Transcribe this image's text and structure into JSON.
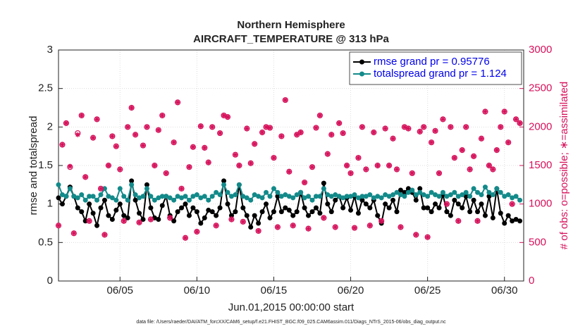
{
  "chart_data": {
    "type": "line",
    "title": "Northern Hemisphere",
    "subtitle": "AIRCRAFT_TEMPERATURE @ 313 hPa",
    "x_label": "Jun.01,2015 00:00:00 start",
    "y_label": "rmse and totalspread",
    "y2_label": "# of obs: o=possible; ∗=assimilated",
    "footnote": "data file: /Users/raeder/DAI/ATM_forcXX/CAM6_setup/f.e21.FHIST_BGC.f09_025.CAM6assim.011/Diags_NTrS_2015-06/obs_diag_output.nc",
    "xlim": [
      1,
      31.25
    ],
    "xticks": [
      {
        "value": 5,
        "label": "06/05"
      },
      {
        "value": 10,
        "label": "06/10"
      },
      {
        "value": 15,
        "label": "06/15"
      },
      {
        "value": 20,
        "label": "06/20"
      },
      {
        "value": 25,
        "label": "06/25"
      },
      {
        "value": 30,
        "label": "06/30"
      }
    ],
    "ylim": [
      0,
      3
    ],
    "yticks": [
      0,
      0.5,
      1,
      1.5,
      2,
      2.5,
      3
    ],
    "y2lim": [
      0,
      3000
    ],
    "y2ticks": [
      0,
      500,
      1000,
      1500,
      2000,
      2500,
      3000
    ],
    "grid": true,
    "legend": "upper right",
    "x": [
      1,
      1.25,
      1.5,
      1.75,
      2,
      2.25,
      2.5,
      2.75,
      3,
      3.25,
      3.5,
      3.75,
      4,
      4.25,
      4.5,
      4.75,
      5,
      5.25,
      5.5,
      5.75,
      6,
      6.25,
      6.5,
      6.75,
      7,
      7.25,
      7.5,
      7.75,
      8,
      8.25,
      8.5,
      8.75,
      9,
      9.25,
      9.5,
      9.75,
      10,
      10.25,
      10.5,
      10.75,
      11,
      11.25,
      11.5,
      11.75,
      12,
      12.25,
      12.5,
      12.75,
      13,
      13.25,
      13.5,
      13.75,
      14,
      14.25,
      14.5,
      14.75,
      15,
      15.25,
      15.5,
      15.75,
      16,
      16.25,
      16.5,
      16.75,
      17,
      17.25,
      17.5,
      17.75,
      18,
      18.25,
      18.5,
      18.75,
      19,
      19.25,
      19.5,
      19.75,
      20,
      20.25,
      20.5,
      20.75,
      21,
      21.25,
      21.5,
      21.75,
      22,
      22.25,
      22.5,
      22.75,
      23,
      23.25,
      23.5,
      23.75,
      24,
      24.25,
      24.5,
      24.75,
      25,
      25.25,
      25.5,
      25.75,
      26,
      26.25,
      26.5,
      26.75,
      27,
      27.25,
      27.5,
      27.75,
      28,
      28.25,
      28.5,
      28.75,
      29,
      29.25,
      29.5,
      29.75,
      30,
      30.25,
      30.5,
      30.75,
      31
    ],
    "series": [
      {
        "name": "rmse grand pr = 0.95776",
        "color": "#000000",
        "marker": "dot",
        "values": [
          1.08,
          1.0,
          1.1,
          1.22,
          1.1,
          0.95,
          0.9,
          0.78,
          1.0,
          0.88,
          0.72,
          0.95,
          1.05,
          0.85,
          0.8,
          0.92,
          1.0,
          0.85,
          0.82,
          1.3,
          1.05,
          0.88,
          0.8,
          1.25,
          0.95,
          0.82,
          0.8,
          0.98,
          1.1,
          0.85,
          0.78,
          0.9,
          0.95,
          1.0,
          0.85,
          0.95,
          0.9,
          0.75,
          0.82,
          0.92,
          0.9,
          0.85,
          0.95,
          1.3,
          1.0,
          0.85,
          0.9,
          1.25,
          0.95,
          0.85,
          0.7,
          0.85,
          0.75,
          0.9,
          1.0,
          0.82,
          0.9,
          1.1,
          0.9,
          0.95,
          0.92,
          0.85,
          0.9,
          1.15,
          0.95,
          0.85,
          0.9,
          0.95,
          0.88,
          1.27,
          1.0,
          0.9,
          1.05,
          1.1,
          0.95,
          1.08,
          0.92,
          1.1,
          0.88,
          1.05,
          1.0,
          0.95,
          1.05,
          0.85,
          0.75,
          1.0,
          0.95,
          1.05,
          0.9,
          1.18,
          1.15,
          1.2,
          1.15,
          1.05,
          1.2,
          0.95,
          0.95,
          0.9,
          1.0,
          0.95,
          1.12,
          0.9,
          0.85,
          1.05,
          1.0,
          0.95,
          1.1,
          0.9,
          1.05,
          0.9,
          1.0,
          0.85,
          1.1,
          0.82,
          1.2,
          0.88,
          0.75,
          0.85,
          0.78,
          0.8,
          0.78
        ]
      },
      {
        "name": "totalspread grand pr = 1.124",
        "color": "#138a8a",
        "marker": "dot",
        "values": [
          1.25,
          1.12,
          1.1,
          1.2,
          1.1,
          1.08,
          1.12,
          1.05,
          1.1,
          1.1,
          1.05,
          1.12,
          1.2,
          1.1,
          1.08,
          1.05,
          1.2,
          1.1,
          1.05,
          1.25,
          1.12,
          1.08,
          1.1,
          1.2,
          1.1,
          1.05,
          1.08,
          1.1,
          1.1,
          1.08,
          1.05,
          1.1,
          1.08,
          1.1,
          1.05,
          1.1,
          1.12,
          1.08,
          1.1,
          1.05,
          1.1,
          1.15,
          1.12,
          1.25,
          1.15,
          1.1,
          1.12,
          1.25,
          1.1,
          1.08,
          1.05,
          1.12,
          1.1,
          1.08,
          1.15,
          1.1,
          1.2,
          1.15,
          1.1,
          1.12,
          1.1,
          1.08,
          1.12,
          1.15,
          1.08,
          1.1,
          1.05,
          1.1,
          1.1,
          1.2,
          1.12,
          1.1,
          1.12,
          1.1,
          1.08,
          1.1,
          1.1,
          1.12,
          1.08,
          1.1,
          1.1,
          1.12,
          1.08,
          1.1,
          1.08,
          1.12,
          1.1,
          1.12,
          1.15,
          1.12,
          1.1,
          1.15,
          1.18,
          1.12,
          1.15,
          1.12,
          1.1,
          1.15,
          1.12,
          1.1,
          1.15,
          1.1,
          1.12,
          1.15,
          1.1,
          1.12,
          1.15,
          1.1,
          1.2,
          1.15,
          1.12,
          1.22,
          1.15,
          1.12,
          1.2,
          1.15,
          1.1,
          1.12,
          1.08,
          1.1,
          1.05
        ]
      },
      {
        "color": "#d6105a",
        "marker": "circle",
        "axis": "y2",
        "values": [
          720,
          1770,
          2050,
          1480,
          620,
          1920,
          2150,
          1350,
          780,
          1860,
          2100,
          1200,
          600,
          1500,
          1880,
          1750,
          1450,
          780,
          2000,
          2250,
          1900,
          760,
          1760,
          2000,
          800,
          1500,
          1960,
          2150,
          1400,
          820,
          1800,
          2320,
          1200,
          560,
          1480,
          1740,
          640,
          2010,
          1730,
          1540,
          2000,
          720,
          1920,
          2150,
          2130,
          800,
          1640,
          1500,
          770,
          1980,
          1530,
          1780,
          650,
          1930,
          2000,
          1990,
          1600,
          700,
          1880,
          2350,
          1420,
          720,
          1900,
          1930,
          1280,
          680,
          1480,
          1990,
          2150,
          820,
          1650,
          1900,
          700,
          2050,
          1920,
          1500,
          1400,
          690,
          1600,
          2000,
          1450,
          720,
          1930,
          1500,
          780,
          1980,
          1500,
          1850,
          1450,
          700,
          2000,
          1980,
          1400,
          600,
          1940,
          2000,
          570,
          1800,
          1950,
          1400,
          2100,
          1000,
          2000,
          1600,
          780,
          1700,
          2000,
          1450,
          1620,
          780,
          1850,
          2200,
          1500,
          1450,
          1700,
          2000,
          2200,
          1800,
          1000,
          2100,
          2050
        ]
      },
      {
        "color": "#d6105a",
        "marker": "asterisk",
        "axis": "y2",
        "values": [
          720,
          1770,
          2050,
          1490,
          620,
          1900,
          2150,
          1350,
          780,
          1860,
          2100,
          1200,
          600,
          1500,
          1880,
          1750,
          1450,
          780,
          2000,
          2250,
          1900,
          760,
          1760,
          2000,
          800,
          1500,
          1960,
          2150,
          1400,
          820,
          1800,
          2320,
          1200,
          560,
          1480,
          1740,
          640,
          2010,
          1730,
          1540,
          2000,
          720,
          1920,
          2150,
          2130,
          800,
          1640,
          1500,
          770,
          1980,
          1530,
          1780,
          650,
          1930,
          2000,
          1990,
          1600,
          700,
          1880,
          2350,
          1420,
          720,
          1900,
          1930,
          1280,
          680,
          1480,
          1990,
          2150,
          820,
          1650,
          1900,
          700,
          2050,
          1920,
          1500,
          1400,
          690,
          1600,
          2000,
          1450,
          720,
          1930,
          1500,
          780,
          1980,
          1500,
          1850,
          1450,
          700,
          2000,
          1980,
          1400,
          600,
          1940,
          2000,
          570,
          1800,
          1950,
          1400,
          2100,
          1000,
          2000,
          1600,
          780,
          1700,
          2000,
          1450,
          1620,
          780,
          1850,
          2200,
          1500,
          1450,
          1700,
          2000,
          2200,
          1800,
          1000,
          2100,
          2050
        ]
      }
    ]
  }
}
